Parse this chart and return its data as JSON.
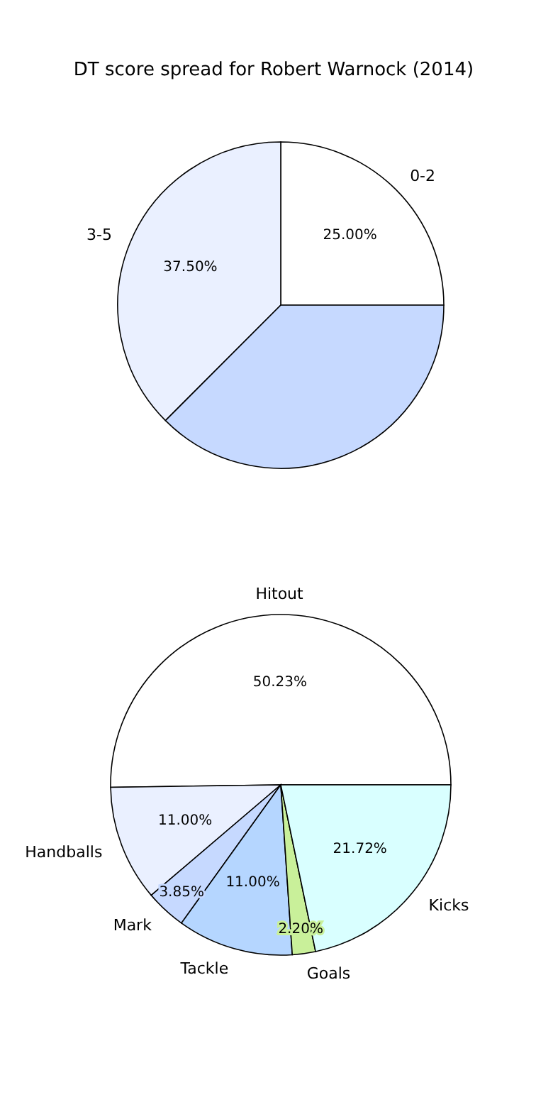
{
  "chart_data": [
    {
      "type": "pie",
      "title": "DT score spread for Robert Warnock (2014)",
      "categories": [
        "0-2",
        "3-5",
        null
      ],
      "values": [
        25,
        37.5,
        37.5
      ],
      "colors": [
        "#ffffff",
        "#eaf0ff",
        "#c6d9ff"
      ],
      "value_labels": [
        "25.00%",
        "37.50%",
        null
      ]
    },
    {
      "type": "pie",
      "categories": [
        "Hitout",
        "Handballs",
        "Mark",
        "Tackle",
        "Goals",
        "Kicks"
      ],
      "values": [
        50.23,
        11,
        3.85,
        11,
        2.2,
        21.72
      ],
      "colors": [
        "#ffffff",
        "#eaf0ff",
        "#c6d9ff",
        "#b5d6ff",
        "#c9f09a",
        "#d9ffff"
      ],
      "value_labels": [
        "50.23%",
        "11.00%",
        "3.85%",
        "11.00%",
        "2.20%",
        "21.72%"
      ]
    }
  ]
}
